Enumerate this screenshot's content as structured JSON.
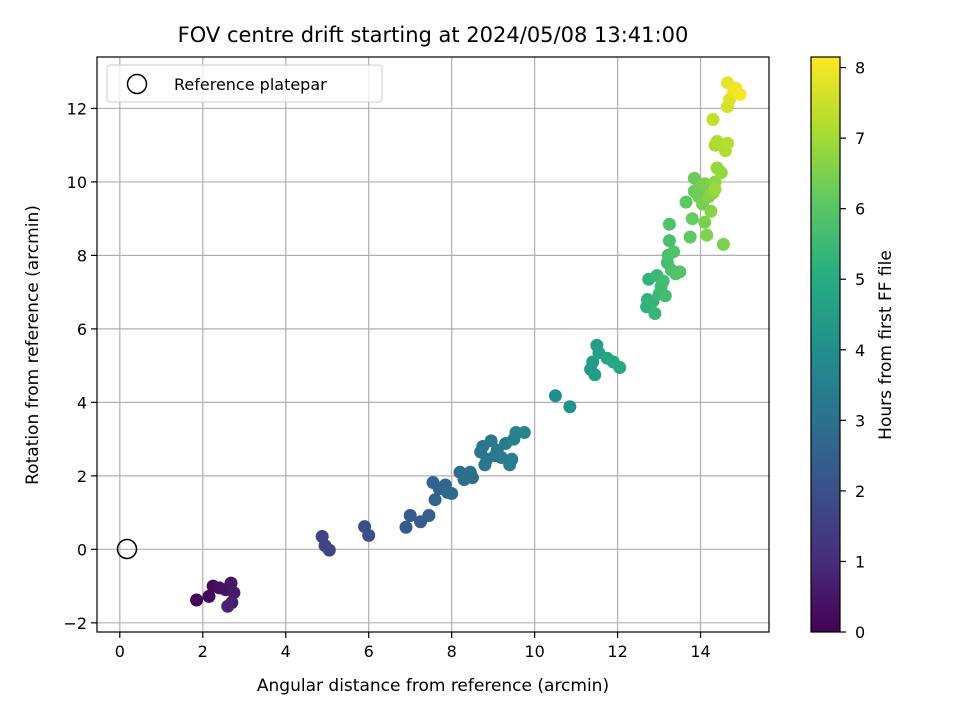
{
  "chart_data": {
    "type": "scatter",
    "title": "FOV centre drift starting at 2024/05/08 13:41:00",
    "xlabel": "Angular distance from reference (arcmin)",
    "ylabel": "Rotation from reference (arcmin)",
    "xlim": [
      -0.55,
      15.65
    ],
    "ylim": [
      -2.25,
      13.4
    ],
    "xticks": [
      0,
      2,
      4,
      6,
      8,
      10,
      12,
      14
    ],
    "yticks": [
      -2,
      0,
      2,
      4,
      6,
      8,
      10,
      12
    ],
    "grid": true,
    "legend": {
      "position": "top-left",
      "entries": [
        "Reference platepar"
      ]
    },
    "reference_point": {
      "x": 0,
      "y": 0,
      "label": "Reference platepar"
    },
    "colorbar": {
      "label": "Hours from first FF file",
      "colormap": "viridis",
      "range": [
        0,
        8.15
      ],
      "ticks": [
        0,
        1,
        2,
        3,
        4,
        5,
        6,
        7,
        8
      ]
    },
    "points": [
      {
        "x": 1.85,
        "y": -1.38,
        "t": 0.05
      },
      {
        "x": 2.15,
        "y": -1.28,
        "t": 0.12
      },
      {
        "x": 2.25,
        "y": -1.0,
        "t": 0.2
      },
      {
        "x": 2.4,
        "y": -1.05,
        "t": 0.3
      },
      {
        "x": 2.55,
        "y": -1.1,
        "t": 0.4
      },
      {
        "x": 2.68,
        "y": -0.92,
        "t": 0.5
      },
      {
        "x": 2.75,
        "y": -1.18,
        "t": 0.6
      },
      {
        "x": 2.7,
        "y": -1.45,
        "t": 0.7
      },
      {
        "x": 2.6,
        "y": -1.55,
        "t": 0.8
      },
      {
        "x": 4.88,
        "y": 0.35,
        "t": 1.6
      },
      {
        "x": 4.95,
        "y": 0.1,
        "t": 1.65
      },
      {
        "x": 5.05,
        "y": -0.02,
        "t": 1.7
      },
      {
        "x": 5.9,
        "y": 0.62,
        "t": 1.9
      },
      {
        "x": 6.0,
        "y": 0.38,
        "t": 1.95
      },
      {
        "x": 6.9,
        "y": 0.6,
        "t": 2.3
      },
      {
        "x": 7.0,
        "y": 0.92,
        "t": 2.35
      },
      {
        "x": 7.25,
        "y": 0.75,
        "t": 2.4
      },
      {
        "x": 7.45,
        "y": 0.92,
        "t": 2.45
      },
      {
        "x": 7.55,
        "y": 1.82,
        "t": 2.6
      },
      {
        "x": 7.6,
        "y": 1.35,
        "t": 2.6
      },
      {
        "x": 7.7,
        "y": 1.65,
        "t": 2.65
      },
      {
        "x": 7.85,
        "y": 1.75,
        "t": 2.7
      },
      {
        "x": 7.9,
        "y": 1.55,
        "t": 2.75
      },
      {
        "x": 8.0,
        "y": 1.52,
        "t": 2.8
      },
      {
        "x": 8.2,
        "y": 2.1,
        "t": 2.9
      },
      {
        "x": 8.3,
        "y": 1.9,
        "t": 2.95
      },
      {
        "x": 8.5,
        "y": 1.95,
        "t": 3.0
      },
      {
        "x": 8.45,
        "y": 2.1,
        "t": 3.0
      },
      {
        "x": 8.7,
        "y": 2.65,
        "t": 3.1
      },
      {
        "x": 8.75,
        "y": 2.8,
        "t": 3.15
      },
      {
        "x": 8.8,
        "y": 2.3,
        "t": 3.15
      },
      {
        "x": 8.85,
        "y": 2.45,
        "t": 3.2
      },
      {
        "x": 8.95,
        "y": 2.95,
        "t": 3.25
      },
      {
        "x": 9.05,
        "y": 2.55,
        "t": 3.3
      },
      {
        "x": 9.1,
        "y": 2.7,
        "t": 3.3
      },
      {
        "x": 9.2,
        "y": 2.5,
        "t": 3.35
      },
      {
        "x": 9.3,
        "y": 2.88,
        "t": 3.4
      },
      {
        "x": 9.4,
        "y": 2.3,
        "t": 3.45
      },
      {
        "x": 9.45,
        "y": 2.45,
        "t": 3.5
      },
      {
        "x": 9.5,
        "y": 3.0,
        "t": 3.55
      },
      {
        "x": 9.55,
        "y": 3.18,
        "t": 3.6
      },
      {
        "x": 9.75,
        "y": 3.18,
        "t": 3.7
      },
      {
        "x": 10.5,
        "y": 4.18,
        "t": 4.0
      },
      {
        "x": 10.85,
        "y": 3.88,
        "t": 4.1
      },
      {
        "x": 11.35,
        "y": 4.9,
        "t": 4.4
      },
      {
        "x": 11.4,
        "y": 5.1,
        "t": 4.45
      },
      {
        "x": 11.45,
        "y": 4.75,
        "t": 4.5
      },
      {
        "x": 11.5,
        "y": 5.55,
        "t": 4.55
      },
      {
        "x": 11.55,
        "y": 5.35,
        "t": 4.6
      },
      {
        "x": 11.75,
        "y": 5.2,
        "t": 4.7
      },
      {
        "x": 11.9,
        "y": 5.1,
        "t": 4.8
      },
      {
        "x": 12.05,
        "y": 4.95,
        "t": 4.9
      },
      {
        "x": 12.7,
        "y": 6.6,
        "t": 5.2
      },
      {
        "x": 12.72,
        "y": 6.8,
        "t": 5.25
      },
      {
        "x": 12.75,
        "y": 7.35,
        "t": 5.3
      },
      {
        "x": 12.85,
        "y": 6.75,
        "t": 5.35
      },
      {
        "x": 12.9,
        "y": 6.42,
        "t": 5.4
      },
      {
        "x": 12.95,
        "y": 7.45,
        "t": 5.45
      },
      {
        "x": 13.0,
        "y": 6.95,
        "t": 5.5
      },
      {
        "x": 13.05,
        "y": 7.15,
        "t": 5.55
      },
      {
        "x": 13.1,
        "y": 7.3,
        "t": 5.6
      },
      {
        "x": 13.15,
        "y": 6.9,
        "t": 5.6
      },
      {
        "x": 13.2,
        "y": 7.8,
        "t": 5.65
      },
      {
        "x": 13.22,
        "y": 8.0,
        "t": 5.7
      },
      {
        "x": 13.25,
        "y": 8.4,
        "t": 5.75
      },
      {
        "x": 13.25,
        "y": 8.85,
        "t": 5.8
      },
      {
        "x": 13.3,
        "y": 7.6,
        "t": 5.75
      },
      {
        "x": 13.35,
        "y": 8.1,
        "t": 5.85
      },
      {
        "x": 13.4,
        "y": 7.5,
        "t": 5.9
      },
      {
        "x": 13.5,
        "y": 7.55,
        "t": 5.9
      },
      {
        "x": 13.65,
        "y": 9.45,
        "t": 6.1
      },
      {
        "x": 13.75,
        "y": 8.5,
        "t": 6.1
      },
      {
        "x": 13.8,
        "y": 9.0,
        "t": 6.2
      },
      {
        "x": 13.85,
        "y": 9.75,
        "t": 6.25
      },
      {
        "x": 13.85,
        "y": 10.1,
        "t": 6.3
      },
      {
        "x": 13.95,
        "y": 9.6,
        "t": 6.35
      },
      {
        "x": 14.0,
        "y": 9.85,
        "t": 6.4
      },
      {
        "x": 14.05,
        "y": 9.4,
        "t": 6.45
      },
      {
        "x": 14.1,
        "y": 9.95,
        "t": 6.5
      },
      {
        "x": 14.1,
        "y": 8.9,
        "t": 6.5
      },
      {
        "x": 14.15,
        "y": 8.55,
        "t": 6.55
      },
      {
        "x": 14.2,
        "y": 9.6,
        "t": 6.6
      },
      {
        "x": 14.25,
        "y": 9.2,
        "t": 6.65
      },
      {
        "x": 14.3,
        "y": 9.7,
        "t": 6.7
      },
      {
        "x": 14.35,
        "y": 10.0,
        "t": 6.75
      },
      {
        "x": 14.4,
        "y": 10.38,
        "t": 6.8
      },
      {
        "x": 14.5,
        "y": 10.25,
        "t": 6.85
      },
      {
        "x": 14.55,
        "y": 8.3,
        "t": 6.5
      },
      {
        "x": 14.35,
        "y": 9.8,
        "t": 6.9
      },
      {
        "x": 14.35,
        "y": 11.0,
        "t": 7.1
      },
      {
        "x": 14.4,
        "y": 11.1,
        "t": 7.15
      },
      {
        "x": 14.6,
        "y": 10.85,
        "t": 7.2
      },
      {
        "x": 14.65,
        "y": 11.05,
        "t": 7.25
      },
      {
        "x": 14.3,
        "y": 11.7,
        "t": 7.4
      },
      {
        "x": 14.65,
        "y": 12.05,
        "t": 7.6
      },
      {
        "x": 14.7,
        "y": 12.25,
        "t": 7.7
      },
      {
        "x": 14.65,
        "y": 12.7,
        "t": 7.85
      },
      {
        "x": 14.8,
        "y": 12.45,
        "t": 7.9
      },
      {
        "x": 14.85,
        "y": 12.55,
        "t": 8.0
      },
      {
        "x": 14.95,
        "y": 12.38,
        "t": 8.1
      }
    ]
  }
}
